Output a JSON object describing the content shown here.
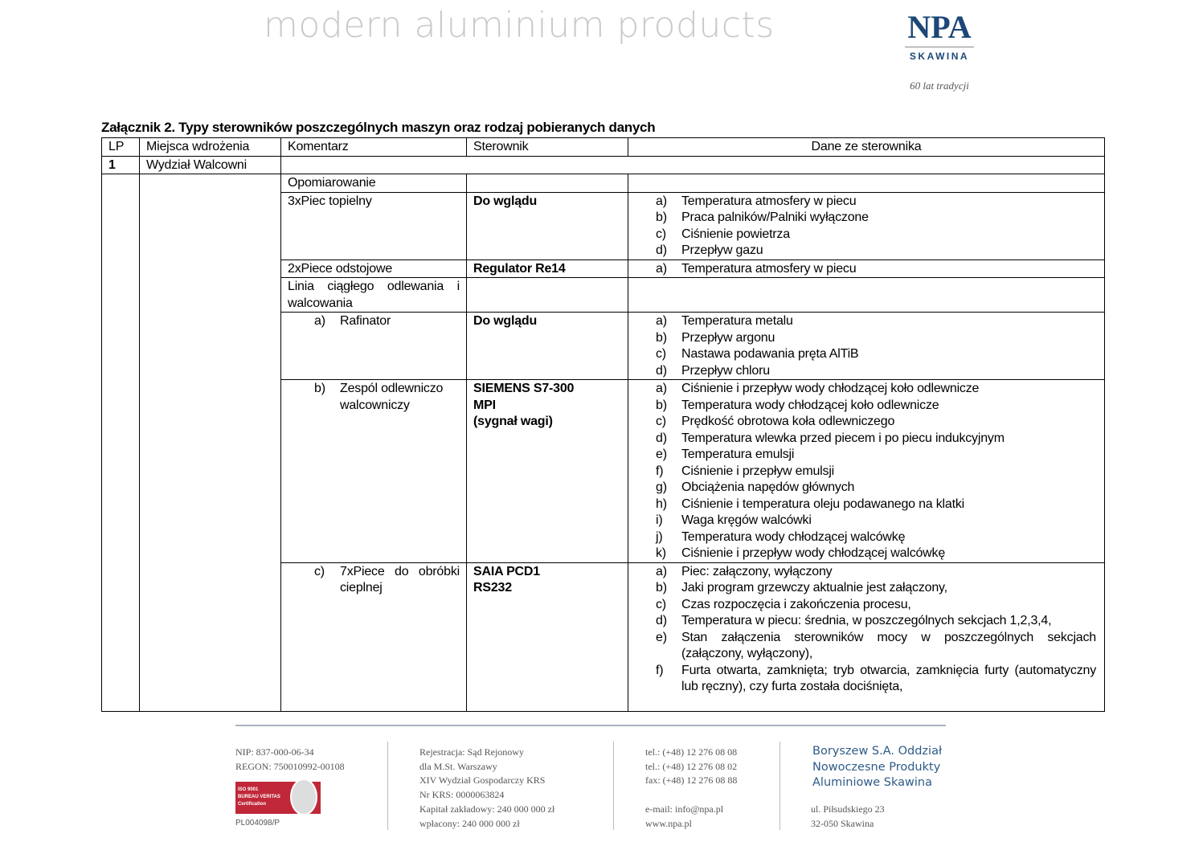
{
  "header": {
    "tagline": "modern aluminium products",
    "logo": "NPA",
    "logo_sub": "SKAWINA",
    "logo_motto": "60 lat tradycji"
  },
  "title": "Załącznik 2. Typy sterowników poszczególnych maszyn oraz rodzaj pobieranych danych",
  "table": {
    "headers": [
      "LP",
      "Miejsca wdrożenia",
      "Komentarz",
      "Sterownik",
      "Dane ze sterownika"
    ],
    "lp": "1",
    "dept": "Wydział Walcowni",
    "rows": [
      {
        "komentarz": "Opomiarowanie",
        "sterownik": [],
        "dane": []
      },
      {
        "komentarz": "3xPiec topielny",
        "sterownik": [
          "Do wglądu"
        ],
        "dane": [
          [
            "a)",
            "Temperatura atmosfery w piecu"
          ],
          [
            "b)",
            "Praca palników/Palniki wyłączone"
          ],
          [
            "c)",
            "Ciśnienie powietrza"
          ],
          [
            "d)",
            "Przepływ gazu"
          ]
        ]
      },
      {
        "komentarz": "2xPiece odstojowe",
        "sterownik": [
          "Regulator Re14"
        ],
        "dane": [
          [
            "a)",
            "Temperatura atmosfery w piecu"
          ]
        ]
      },
      {
        "komentarz": "Linia ciągłego odlewania i walcowania",
        "sterownik": [],
        "dane": []
      },
      {
        "sub": "a)",
        "komentarz": "Rafinator",
        "sterownik": [
          "Do wglądu"
        ],
        "dane": [
          [
            "a)",
            "Temperatura metalu"
          ],
          [
            "b)",
            "Przepływ argonu"
          ],
          [
            "c)",
            "Nastawa podawania pręta AlTiB"
          ],
          [
            "d)",
            "Przepływ chloru"
          ]
        ]
      },
      {
        "sub": "b)",
        "komentarz": "Zespól odlewniczo walcowniczy",
        "sterownik": [
          "SIEMENS S7-300",
          "MPI",
          "(sygnał wagi)"
        ],
        "dane": [
          [
            "a)",
            "Ciśnienie i przepływ wody chłodzącej koło odlewnicze"
          ],
          [
            "b)",
            "Temperatura wody chłodzącej koło odlewnicze"
          ],
          [
            "c)",
            "Prędkość obrotowa koła odlewniczego"
          ],
          [
            "d)",
            "Temperatura wlewka przed piecem i po piecu indukcyjnym"
          ],
          [
            "e)",
            "Temperatura emulsji"
          ],
          [
            "f)",
            "Ciśnienie i przepływ emulsji"
          ],
          [
            "g)",
            "Obciążenia napędów głównych"
          ],
          [
            "h)",
            "Ciśnienie i temperatura oleju podawanego na klatki"
          ],
          [
            "i)",
            "Waga kręgów walcówki"
          ],
          [
            "j)",
            "Temperatura wody chłodzącej walcówkę"
          ],
          [
            "k)",
            "Ciśnienie i przepływ wody chłodzącej walcówkę"
          ]
        ]
      },
      {
        "sub": "c)",
        "komentarz": "7xPiece do obróbki cieplnej",
        "sterownik": [
          "SAIA PCD1",
          "RS232"
        ],
        "dane": [
          [
            "a)",
            "Piec: załączony, wyłączony"
          ],
          [
            "b)",
            "Jaki program grzewczy aktualnie jest załączony,"
          ],
          [
            "c)",
            "Czas rozpoczęcia i zakończenia procesu,"
          ],
          [
            "d)",
            "Temperatura w piecu: średnia, w poszczególnych sekcjach 1,2,3,4,"
          ],
          [
            "e)",
            "Stan załączenia sterowników mocy w poszczególnych sekcjach (załączony, wyłączony),"
          ],
          [
            "f)",
            "Furta otwarta, zamknięta; tryb otwarcia, zamknięcia furty (automatyczny lub ręczny), czy furta została dociśnięta,"
          ]
        ]
      }
    ]
  },
  "footer": {
    "col1": [
      "NIP: 837-000-06-34",
      "REGON: 750010992-00108"
    ],
    "cert": [
      "ISO 9001",
      "BUREAU VERITAS",
      "Certification"
    ],
    "cert_no": "PL004098/P",
    "col2": [
      "Rejestracja: Sąd Rejonowy",
      "dla M.St. Warszawy",
      "XIV Wydział  Gospodarczy KRS",
      "Nr KRS: 0000063824",
      "Kapitał zakładowy: 240 000 000 zł",
      "wpłacony: 240 000 000 zł"
    ],
    "col3": [
      "tel.: (+48) 12 276 08 08",
      "tel.: (+48) 12 276 08 02",
      "fax: (+48) 12 276 08 88",
      "",
      "e-mail: info@npa.pl",
      "www.npa.pl"
    ],
    "company": [
      "Boryszew S.A. Oddział",
      "Nowoczesne Produkty",
      "Aluminiowe Skawina"
    ],
    "address": [
      "ul. Piłsudskiego 23",
      "32-050 Skawina"
    ]
  }
}
